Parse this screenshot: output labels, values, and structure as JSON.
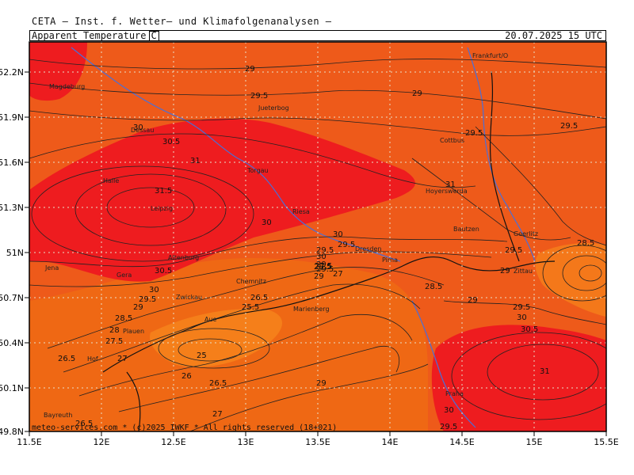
{
  "header": {
    "title": "CETA — Inst. f. Wetter— und Klimafolgenanalysen —",
    "variable": "Apparent_Temperature",
    "unit": "C",
    "valid": "20.07.2025 15 UTC"
  },
  "credit": "meteo-services.com * (c)2025 IWKF * All rights reserved (18+021)",
  "axes": {
    "lon_ticks": [
      "11.5E",
      "12E",
      "12.5E",
      "13E",
      "13.5E",
      "14E",
      "14.5E",
      "15E",
      "15.5E"
    ],
    "lat_ticks": [
      "52.2N",
      "51.9N",
      "51.6N",
      "51.3N",
      "51N",
      "50.7N",
      "50.4N",
      "50.1N",
      "49.8N"
    ]
  },
  "cities": [
    "Magdeburg",
    "Dessau",
    "Jueterbog",
    "Cottbus",
    "Frankfurt/O",
    "Halle",
    "Torgau",
    "Leipzig",
    "Riesa",
    "Hoyerswerda",
    "Bautzen",
    "Goerlitz",
    "Dresden",
    "Pirna",
    "Altenburg",
    "Jena",
    "Gera",
    "Chemnitz",
    "Zwickau",
    "Aue",
    "Marienberg",
    "Plauen",
    "Hof",
    "Zittau",
    "Praha",
    "Bayreuth"
  ],
  "contour_labels": [
    "29",
    "29.5",
    "29",
    "30",
    "30.5",
    "31",
    "31.5",
    "30",
    "31",
    "29.5",
    "30",
    "29.5",
    "29.5",
    "30",
    "29",
    "29.5",
    "29",
    "28.5",
    "27.5",
    "27",
    "30.5",
    "30",
    "29.5",
    "29",
    "28.5",
    "28",
    "27.5",
    "26.5",
    "25.5",
    "27",
    "26.5",
    "25",
    "26",
    "26.5",
    "27",
    "26.5",
    "28.5",
    "29",
    "29.5",
    "30",
    "30.5",
    "31",
    "29.5",
    "29",
    "30",
    "29.5",
    "28.5",
    "29",
    "29.5"
  ],
  "colors": {
    "light_orange": "#ee5a1a",
    "orange_dark": "#ef6d12",
    "red_orange": "#f0401c",
    "red": "#ee1c1f",
    "mid_orange": "#f57f1a",
    "water": "#4a6fd8",
    "grid": "#e8e0c8"
  }
}
